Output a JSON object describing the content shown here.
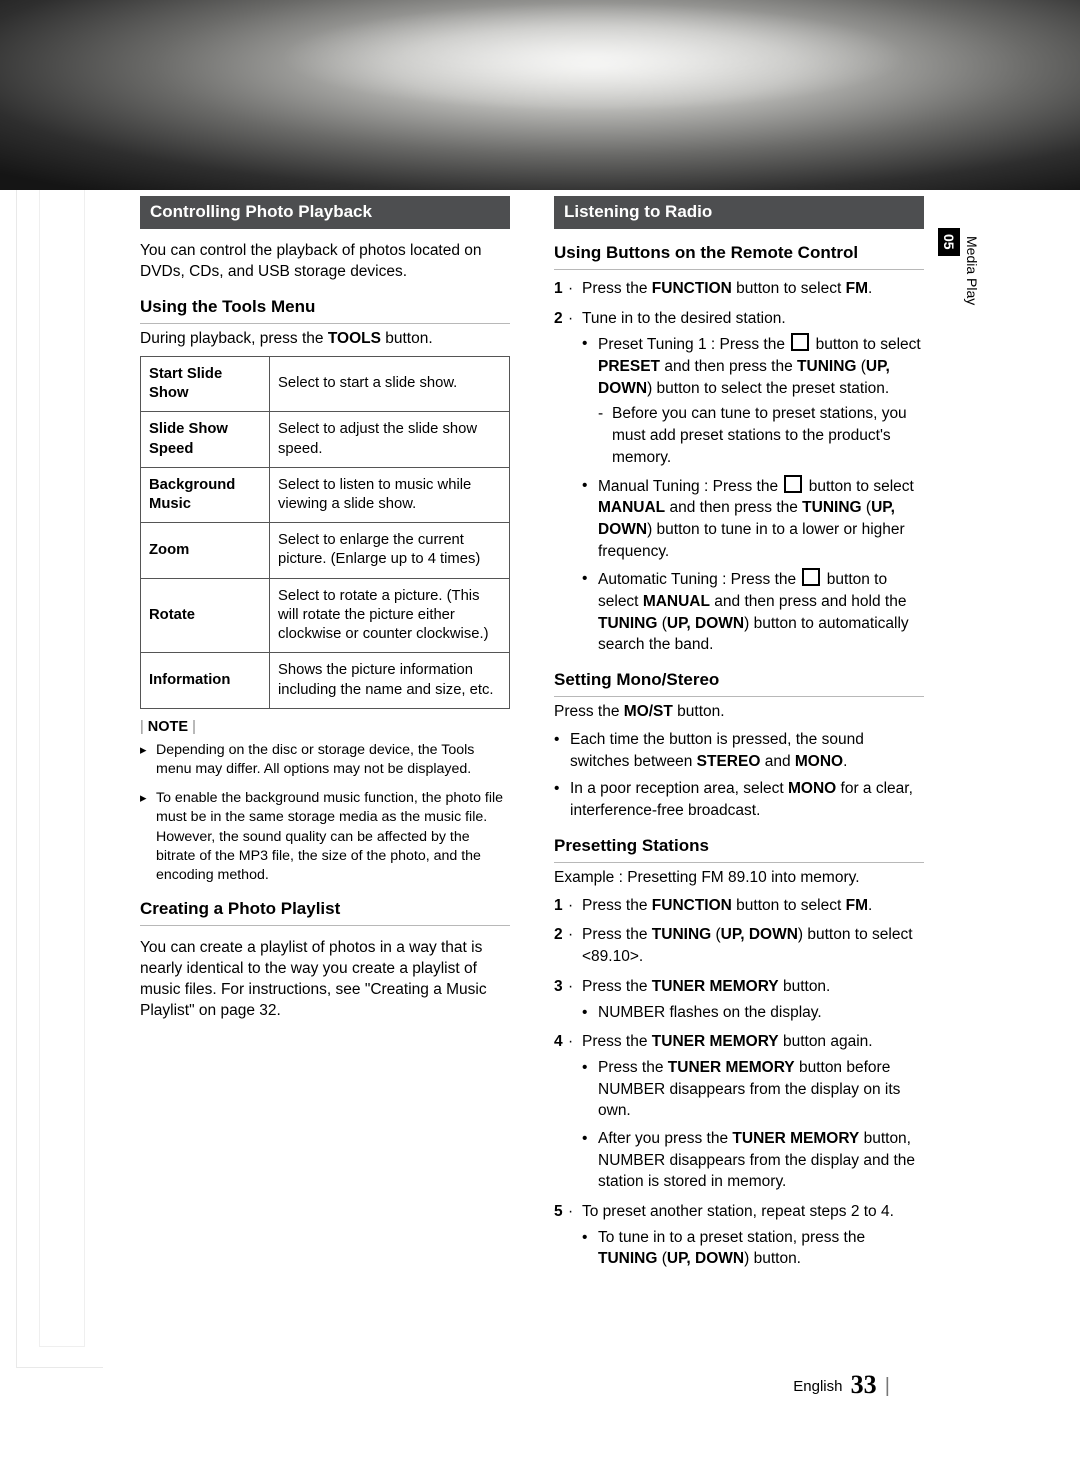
{
  "sideTab": {
    "chapter": "05",
    "label": "Media Play"
  },
  "footer": {
    "lang": "English",
    "page": "33"
  },
  "left": {
    "bar": "Controlling Photo Playback",
    "intro": "You can control the playback of photos located on DVDs, CDs, and USB storage devices.",
    "sub1": "Using the Tools Menu",
    "sub1_line_a": "During playback, press the ",
    "sub1_line_b": "TOOLS",
    "sub1_line_c": " button.",
    "table": {
      "r1k": "Start Slide Show",
      "r1v": "Select to start a slide show.",
      "r2k": "Slide Show Speed",
      "r2v": "Select to adjust the slide show speed.",
      "r3k": "Background Music",
      "r3v": "Select to listen to music while viewing a slide show.",
      "r4k": "Zoom",
      "r4v": "Select to enlarge the current picture. (Enlarge up to 4 times)",
      "r5k": "Rotate",
      "r5v": "Select to rotate a picture. (This will rotate the picture either clockwise or counter clockwise.)",
      "r6k": "Information",
      "r6v": "Shows the picture information including the name and size, etc."
    },
    "note_label": "NOTE",
    "notes": {
      "n1": "Depending on the disc or storage device, the Tools menu may differ. All options may not be displayed.",
      "n2": "To enable the background music function, the photo file must be in the same storage media as the music file. However, the sound quality can be affected by the bitrate of the MP3 file, the size of the photo, and the encoding method."
    },
    "sub2": "Creating a Photo Playlist",
    "sub2_body": "You can create a playlist of photos in a way that is nearly identical to the way you create a playlist of music files. For instructions, see \"Creating a Music Playlist\" on page 32."
  },
  "right": {
    "bar": "Listening to Radio",
    "sub1": "Using Buttons on the Remote Control",
    "s1": {
      "l1a": "Press the ",
      "l1b": "FUNCTION",
      "l1c": " button to select ",
      "l1d": "FM",
      "l1e": ".",
      "l2": "Tune in to the desired station.",
      "b1a": "Preset Tuning 1 : Press the ",
      "b1b": " button to select ",
      "b1c": "PRESET",
      "b1d": " and then press the ",
      "b1e": "TUNING",
      "b1f": " (",
      "b1g": "UP, DOWN",
      "b1h": ") button to select the preset station.",
      "d1": "Before you can tune to preset stations, you must add preset stations to the product's memory.",
      "b2a": "Manual Tuning : Press the ",
      "b2b": " button to select ",
      "b2c": "MANUAL",
      "b2d": " and then press the ",
      "b2e": "TUNING",
      "b2f": " (",
      "b2g": "UP, DOWN",
      "b2h": ") button to tune in to a lower or higher frequency.",
      "b3a": "Automatic Tuning : Press the ",
      "b3b": " button to select ",
      "b3c": "MANUAL",
      "b3d": " and then press and hold the ",
      "b3e": "TUNING",
      "b3f": " (",
      "b3g": "UP, DOWN",
      "b3h": ") button to automatically search the band."
    },
    "sub2": "Setting Mono/Stereo",
    "s2": {
      "p_a": "Press the ",
      "p_b": "MO/ST",
      "p_c": " button.",
      "b1a": "Each time the button is pressed, the sound switches between ",
      "b1b": "STEREO",
      "b1c": " and ",
      "b1d": "MONO",
      "b1e": ".",
      "b2a": "In a poor reception area, select ",
      "b2b": "MONO",
      "b2c": " for a clear, interference-free broadcast."
    },
    "sub3": "Presetting Stations",
    "s3": {
      "ex": "Example : Presetting FM 89.10 into memory.",
      "l1a": "Press the ",
      "l1b": "FUNCTION",
      "l1c": " button to select ",
      "l1d": "FM",
      "l1e": ".",
      "l2a": "Press the ",
      "l2b": "TUNING",
      "l2c": " (",
      "l2d": "UP, DOWN",
      "l2e": ") button to select <89.10>.",
      "l3a": "Press the ",
      "l3b": "TUNER MEMORY",
      "l3c": " button.",
      "l3_b1": "NUMBER flashes on the display.",
      "l4a": "Press the ",
      "l4b": "TUNER MEMORY",
      "l4c": " button again.",
      "l4_b1a": "Press the ",
      "l4_b1b": "TUNER MEMORY",
      "l4_b1c": " button before NUMBER disappears from the display on its own.",
      "l4_b2a": "After you press the ",
      "l4_b2b": "TUNER MEMORY",
      "l4_b2c": " button, NUMBER disappears from the display and the station is stored in memory.",
      "l5": "To preset another station, repeat steps 2 to 4.",
      "l5_b1a": "To tune in to a preset station, press the ",
      "l5_b1b": "TUNING",
      "l5_b1c": " (",
      "l5_b1d": "UP, DOWN",
      "l5_b1e": ") button."
    }
  }
}
